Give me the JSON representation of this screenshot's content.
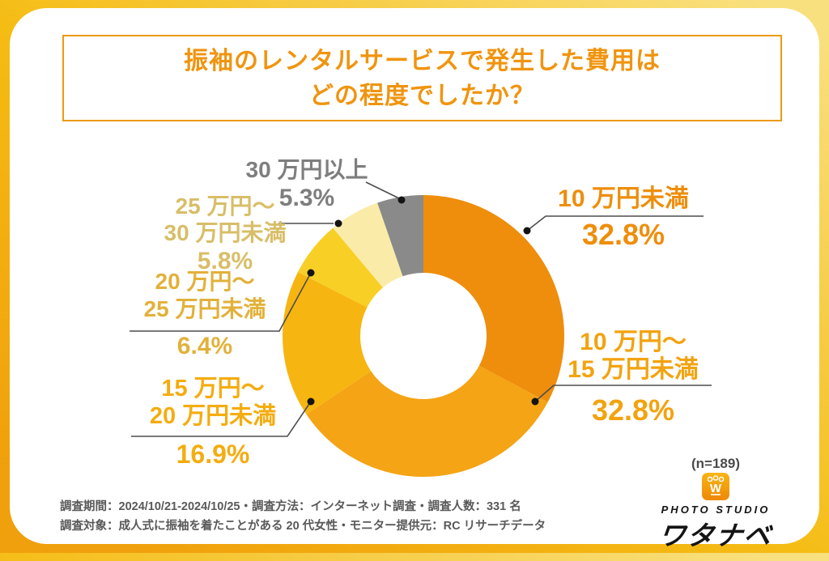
{
  "title": {
    "line1": "振袖のレンタルサービスで発生した費用は",
    "line2": "どの程度でしたか？"
  },
  "chart_data": {
    "type": "pie",
    "subtype": "donut",
    "title": "振袖のレンタルサービスで発生した費用はどの程度でしたか？",
    "sample_label": "(n=189)",
    "unit": "%",
    "start_angle_deg": 0,
    "direction": "clockwise",
    "segments": [
      {
        "label": "10万円未満",
        "value": 32.8,
        "color": "#EE8E0C"
      },
      {
        "label": "10万円〜15万円未満",
        "value": 32.8,
        "color": "#F4A414"
      },
      {
        "label": "15万円〜20万円未満",
        "value": 16.9,
        "color": "#F7B511"
      },
      {
        "label": "20万円〜25万円未満",
        "value": 6.4,
        "color": "#F8CF25"
      },
      {
        "label": "25万円〜30万円未満",
        "value": 5.8,
        "color": "#FAECA8"
      },
      {
        "label": "30万円以上",
        "value": 5.3,
        "color": "#8A8A8A"
      }
    ]
  },
  "callouts": [
    {
      "lines": [
        "10 万円未満"
      ],
      "pct": "32.8%"
    },
    {
      "lines": [
        "10 万円〜",
        "15 万円未満"
      ],
      "pct": "32.8%"
    },
    {
      "lines": [
        "15 万円〜",
        "20 万円未満"
      ],
      "pct": "16.9%"
    },
    {
      "lines": [
        "20 万円〜",
        "25 万円未満"
      ],
      "pct": "6.4%"
    },
    {
      "lines": [
        "25 万円〜",
        "30 万円未満"
      ],
      "pct": "5.8%"
    },
    {
      "lines": [
        "30 万円以上"
      ],
      "pct": "5.3%"
    }
  ],
  "sample": {
    "n_label": "(n=189)"
  },
  "footer": {
    "note1": "調査期間：2024/10/21-2024/10/25・調査方法：インターネット調査・調査人数：331 名",
    "note2": "調査対象：成人式に振袖を着たことがある 20 代女性・モニター提供元：RC リサーチデータ"
  },
  "brand": {
    "monogram": "W",
    "sub": "PHOTO STUDIO",
    "name": "ワタナベ"
  }
}
